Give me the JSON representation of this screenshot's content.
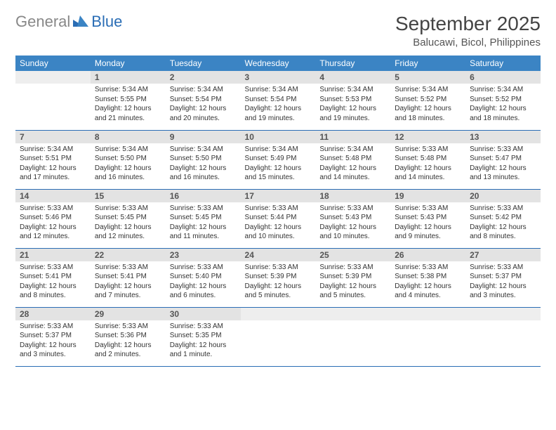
{
  "brand": {
    "general": "General",
    "blue": "Blue"
  },
  "title": "September 2025",
  "location": "Balucawi, Bicol, Philippines",
  "colors": {
    "header_bg": "#3b84c4",
    "header_text": "#ffffff",
    "daynum_bg": "#e3e3e3",
    "border": "#2a6db5",
    "brand_blue": "#2a6db5",
    "brand_gray": "#888888"
  },
  "weekdays": [
    "Sunday",
    "Monday",
    "Tuesday",
    "Wednesday",
    "Thursday",
    "Friday",
    "Saturday"
  ],
  "start_offset": 1,
  "days": [
    {
      "n": 1,
      "sr": "5:34 AM",
      "ss": "5:55 PM",
      "dl": "12 hours and 21 minutes."
    },
    {
      "n": 2,
      "sr": "5:34 AM",
      "ss": "5:54 PM",
      "dl": "12 hours and 20 minutes."
    },
    {
      "n": 3,
      "sr": "5:34 AM",
      "ss": "5:54 PM",
      "dl": "12 hours and 19 minutes."
    },
    {
      "n": 4,
      "sr": "5:34 AM",
      "ss": "5:53 PM",
      "dl": "12 hours and 19 minutes."
    },
    {
      "n": 5,
      "sr": "5:34 AM",
      "ss": "5:52 PM",
      "dl": "12 hours and 18 minutes."
    },
    {
      "n": 6,
      "sr": "5:34 AM",
      "ss": "5:52 PM",
      "dl": "12 hours and 18 minutes."
    },
    {
      "n": 7,
      "sr": "5:34 AM",
      "ss": "5:51 PM",
      "dl": "12 hours and 17 minutes."
    },
    {
      "n": 8,
      "sr": "5:34 AM",
      "ss": "5:50 PM",
      "dl": "12 hours and 16 minutes."
    },
    {
      "n": 9,
      "sr": "5:34 AM",
      "ss": "5:50 PM",
      "dl": "12 hours and 16 minutes."
    },
    {
      "n": 10,
      "sr": "5:34 AM",
      "ss": "5:49 PM",
      "dl": "12 hours and 15 minutes."
    },
    {
      "n": 11,
      "sr": "5:34 AM",
      "ss": "5:48 PM",
      "dl": "12 hours and 14 minutes."
    },
    {
      "n": 12,
      "sr": "5:33 AM",
      "ss": "5:48 PM",
      "dl": "12 hours and 14 minutes."
    },
    {
      "n": 13,
      "sr": "5:33 AM",
      "ss": "5:47 PM",
      "dl": "12 hours and 13 minutes."
    },
    {
      "n": 14,
      "sr": "5:33 AM",
      "ss": "5:46 PM",
      "dl": "12 hours and 12 minutes."
    },
    {
      "n": 15,
      "sr": "5:33 AM",
      "ss": "5:45 PM",
      "dl": "12 hours and 12 minutes."
    },
    {
      "n": 16,
      "sr": "5:33 AM",
      "ss": "5:45 PM",
      "dl": "12 hours and 11 minutes."
    },
    {
      "n": 17,
      "sr": "5:33 AM",
      "ss": "5:44 PM",
      "dl": "12 hours and 10 minutes."
    },
    {
      "n": 18,
      "sr": "5:33 AM",
      "ss": "5:43 PM",
      "dl": "12 hours and 10 minutes."
    },
    {
      "n": 19,
      "sr": "5:33 AM",
      "ss": "5:43 PM",
      "dl": "12 hours and 9 minutes."
    },
    {
      "n": 20,
      "sr": "5:33 AM",
      "ss": "5:42 PM",
      "dl": "12 hours and 8 minutes."
    },
    {
      "n": 21,
      "sr": "5:33 AM",
      "ss": "5:41 PM",
      "dl": "12 hours and 8 minutes."
    },
    {
      "n": 22,
      "sr": "5:33 AM",
      "ss": "5:41 PM",
      "dl": "12 hours and 7 minutes."
    },
    {
      "n": 23,
      "sr": "5:33 AM",
      "ss": "5:40 PM",
      "dl": "12 hours and 6 minutes."
    },
    {
      "n": 24,
      "sr": "5:33 AM",
      "ss": "5:39 PM",
      "dl": "12 hours and 5 minutes."
    },
    {
      "n": 25,
      "sr": "5:33 AM",
      "ss": "5:39 PM",
      "dl": "12 hours and 5 minutes."
    },
    {
      "n": 26,
      "sr": "5:33 AM",
      "ss": "5:38 PM",
      "dl": "12 hours and 4 minutes."
    },
    {
      "n": 27,
      "sr": "5:33 AM",
      "ss": "5:37 PM",
      "dl": "12 hours and 3 minutes."
    },
    {
      "n": 28,
      "sr": "5:33 AM",
      "ss": "5:37 PM",
      "dl": "12 hours and 3 minutes."
    },
    {
      "n": 29,
      "sr": "5:33 AM",
      "ss": "5:36 PM",
      "dl": "12 hours and 2 minutes."
    },
    {
      "n": 30,
      "sr": "5:33 AM",
      "ss": "5:35 PM",
      "dl": "12 hours and 1 minute."
    }
  ],
  "labels": {
    "sunrise": "Sunrise:",
    "sunset": "Sunset:",
    "daylight": "Daylight:"
  }
}
